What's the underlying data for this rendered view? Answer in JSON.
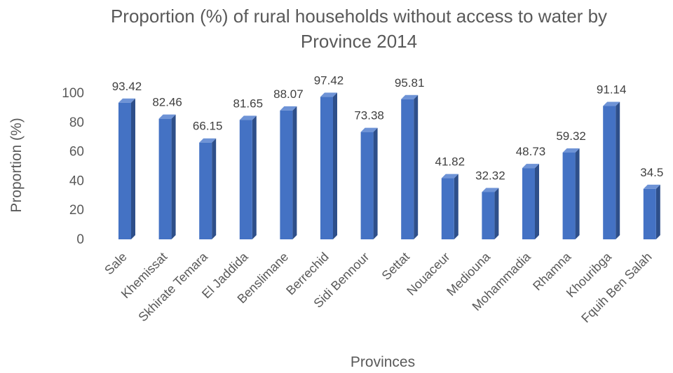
{
  "chart_data": {
    "type": "bar",
    "title_line1": "Proportion (%) of rural households without access to water by",
    "title_line2": "Province 2014",
    "xlabel": "Provinces",
    "ylabel": "Proportion (%)",
    "ylim": [
      0,
      100
    ],
    "yticks": [
      "0",
      "20",
      "40",
      "60",
      "80",
      "100"
    ],
    "categories": [
      "Sale",
      "Khemissat",
      "Skhirate Temara",
      "El Jaddida",
      "Benslimane",
      "Berrechid",
      "Sidi Bennour",
      "Settat",
      "Nouaceur",
      "Mediouna",
      "Mohammadia",
      "Rhamna",
      "Khouribga",
      "Fquih Ben Salah"
    ],
    "values": [
      93.42,
      82.46,
      66.15,
      81.65,
      88.07,
      97.42,
      73.38,
      95.81,
      41.82,
      32.32,
      48.73,
      59.32,
      91.14,
      34.5
    ],
    "value_labels": [
      "93.42",
      "82.46",
      "66.15",
      "81.65",
      "88.07",
      "97.42",
      "73.38",
      "95.81",
      "41.82",
      "32.32",
      "48.73",
      "59.32",
      "91.14",
      "34.5"
    ],
    "bar_style": "3d-column",
    "grid": false,
    "legend": "none",
    "colors": {
      "bar_front": "#4472C4",
      "bar_side": "#2E4F8A",
      "bar_top": "#6E93D6",
      "text": "#595959"
    }
  }
}
